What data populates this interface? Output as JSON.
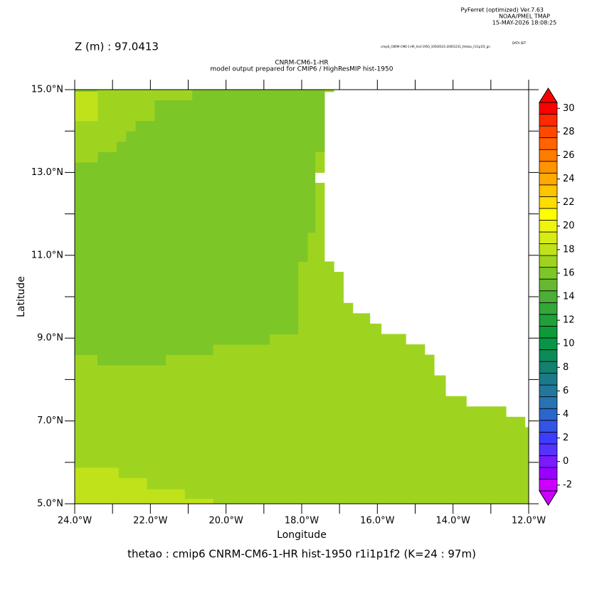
{
  "header": {
    "program": "PyFerret (optimized) Ver.7.63",
    "lab": "NOAA/PMEL TMAP",
    "date": "15-MAY-2026 18:08:25"
  },
  "chart_data": {
    "type": "heatmap",
    "depth_label": "Z (m) : 97.0413",
    "title": "CNRM-CM6-1-HR",
    "subtitle": "model output prepared for CMIP6 / HighResMIP hist-1950",
    "dataset": "cmip6_CNRM-CM6-1-HR_hist-1950_19500101-20001231_thetao_r1i1p1f2_gn",
    "dataset_label": "DATA SET:",
    "footer": "thetao : cmip6 CNRM-CM6-1-HR hist-1950 r1i1p1f2   (K=24 : 97m)",
    "x_label": "Longitude",
    "y_label": "Latitude",
    "xlim": [
      -24,
      -12
    ],
    "ylim": [
      5,
      15
    ],
    "xticks": [
      {
        "value": -24,
        "label": "24.0°W"
      },
      {
        "value": -22,
        "label": "22.0°W"
      },
      {
        "value": -20,
        "label": "20.0°W"
      },
      {
        "value": -18,
        "label": "18.0°W"
      },
      {
        "value": -16,
        "label": "16.0°W"
      },
      {
        "value": -14,
        "label": "14.0°W"
      },
      {
        "value": -12,
        "label": "12.0°W"
      }
    ],
    "yticks": [
      {
        "value": 5,
        "label": "5.0°N"
      },
      {
        "value": 7,
        "label": "7.0°N"
      },
      {
        "value": 9,
        "label": "9.0°N"
      },
      {
        "value": 11,
        "label": "11.0°N"
      },
      {
        "value": 13,
        "label": "13.0°N"
      },
      {
        "value": 15,
        "label": "15.0°N"
      }
    ],
    "clim": [
      -2.5,
      30.5
    ],
    "cticks": [
      -2,
      0,
      2,
      4,
      6,
      8,
      10,
      12,
      14,
      16,
      18,
      20,
      22,
      24,
      26,
      28,
      30
    ],
    "colors": [
      "#cc00ff",
      "#9900ff",
      "#7a1aff",
      "#5533ff",
      "#3d3dff",
      "#3355e6",
      "#2b66cc",
      "#2a73b3",
      "#22779a",
      "#1a7a8a",
      "#138070",
      "#0d8a5a",
      "#099448",
      "#0f9a3a",
      "#1fa038",
      "#33a838",
      "#4caf38",
      "#66b832",
      "#7dc627",
      "#9ed420",
      "#c0e21a",
      "#d8ec14",
      "#eef40e",
      "#ffff00",
      "#ffdd00",
      "#ffc400",
      "#ffaa00",
      "#ff9400",
      "#ff7c00",
      "#ff6400",
      "#ff4800",
      "#ff2a00",
      "#ff0000"
    ],
    "cells": [
      {
        "lon": [
          -24,
          -12
        ],
        "lat": [
          5,
          6.85
        ],
        "value": 17
      },
      {
        "lon": [
          -24,
          -12.1
        ],
        "lat": [
          6.85,
          7.1
        ],
        "value": 17
      },
      {
        "lon": [
          -24,
          -12.6
        ],
        "lat": [
          7.1,
          7.35
        ],
        "value": 17
      },
      {
        "lon": [
          -24,
          -13.65
        ],
        "lat": [
          7.35,
          7.6
        ],
        "value": 17
      },
      {
        "lon": [
          -24,
          -14.2
        ],
        "lat": [
          7.6,
          8.1
        ],
        "value": 17
      },
      {
        "lon": [
          -24,
          -14.5
        ],
        "lat": [
          8.1,
          8.6
        ],
        "value": 17
      },
      {
        "lon": [
          -24,
          -14.75
        ],
        "lat": [
          8.6,
          8.85
        ],
        "value": 17
      },
      {
        "lon": [
          -24,
          -15.25
        ],
        "lat": [
          8.85,
          9.1
        ],
        "value": 17
      },
      {
        "lon": [
          -24,
          -15.9
        ],
        "lat": [
          9.1,
          9.35
        ],
        "value": 17
      },
      {
        "lon": [
          -24,
          -16.2
        ],
        "lat": [
          9.35,
          9.6
        ],
        "value": 17
      },
      {
        "lon": [
          -24,
          -16.65
        ],
        "lat": [
          9.6,
          9.85
        ],
        "value": 17
      },
      {
        "lon": [
          -24,
          -16.9
        ],
        "lat": [
          9.85,
          10.6
        ],
        "value": 17
      },
      {
        "lon": [
          -24,
          -17.15
        ],
        "lat": [
          10.6,
          10.85
        ],
        "value": 17
      },
      {
        "lon": [
          -24,
          -17.4
        ],
        "lat": [
          10.85,
          12.75
        ],
        "value": 17
      },
      {
        "lon": [
          -24,
          -17.65
        ],
        "lat": [
          12.75,
          13.0
        ],
        "value": 17
      },
      {
        "lon": [
          -24,
          -17.4
        ],
        "lat": [
          13.0,
          14.95
        ],
        "value": 17
      },
      {
        "lon": [
          -24,
          -17.15
        ],
        "lat": [
          14.95,
          15
        ],
        "value": 17
      },
      {
        "lon": [
          -24,
          -23.4
        ],
        "lat": [
          8.6,
          15
        ],
        "value": 16
      },
      {
        "lon": [
          -23.4,
          -21.6
        ],
        "lat": [
          8.35,
          15
        ],
        "value": 16
      },
      {
        "lon": [
          -21.6,
          -20.35
        ],
        "lat": [
          8.6,
          15
        ],
        "value": 16
      },
      {
        "lon": [
          -20.35,
          -18.85
        ],
        "lat": [
          8.85,
          15
        ],
        "value": 16
      },
      {
        "lon": [
          -18.85,
          -18.1
        ],
        "lat": [
          9.1,
          15
        ],
        "value": 16
      },
      {
        "lon": [
          -18.1,
          -17.85
        ],
        "lat": [
          10.85,
          15
        ],
        "value": 16
      },
      {
        "lon": [
          -17.85,
          -17.65
        ],
        "lat": [
          11.55,
          15
        ],
        "value": 16
      },
      {
        "lon": [
          -17.65,
          -17.4
        ],
        "lat": [
          13.5,
          15
        ],
        "value": 16
      },
      {
        "lon": [
          -24,
          -23.4
        ],
        "lat": [
          13.25,
          14.95
        ],
        "value": 17
      },
      {
        "lon": [
          -23.4,
          -22.9
        ],
        "lat": [
          13.5,
          15
        ],
        "value": 17
      },
      {
        "lon": [
          -22.9,
          -22.65
        ],
        "lat": [
          13.75,
          15
        ],
        "value": 17
      },
      {
        "lon": [
          -22.65,
          -22.4
        ],
        "lat": [
          14.0,
          15
        ],
        "value": 17
      },
      {
        "lon": [
          -22.4,
          -21.9
        ],
        "lat": [
          14.25,
          15
        ],
        "value": 17
      },
      {
        "lon": [
          -21.9,
          -20.9
        ],
        "lat": [
          14.75,
          15
        ],
        "value": 17
      },
      {
        "lon": [
          -23.4,
          -20.9
        ],
        "lat": [
          14.95,
          15
        ],
        "value": 17
      },
      {
        "lon": [
          -24,
          -23.4
        ],
        "lat": [
          14.25,
          14.95
        ],
        "value": 18
      },
      {
        "lon": [
          -24,
          -22.85
        ],
        "lat": [
          5,
          5.87
        ],
        "value": 18
      },
      {
        "lon": [
          -22.85,
          -22.1
        ],
        "lat": [
          5,
          5.62
        ],
        "value": 18
      },
      {
        "lon": [
          -22.1,
          -21.1
        ],
        "lat": [
          5,
          5.35
        ],
        "value": 18
      },
      {
        "lon": [
          -21.1,
          -20.35
        ],
        "lat": [
          5,
          5.12
        ],
        "value": 18
      }
    ]
  }
}
